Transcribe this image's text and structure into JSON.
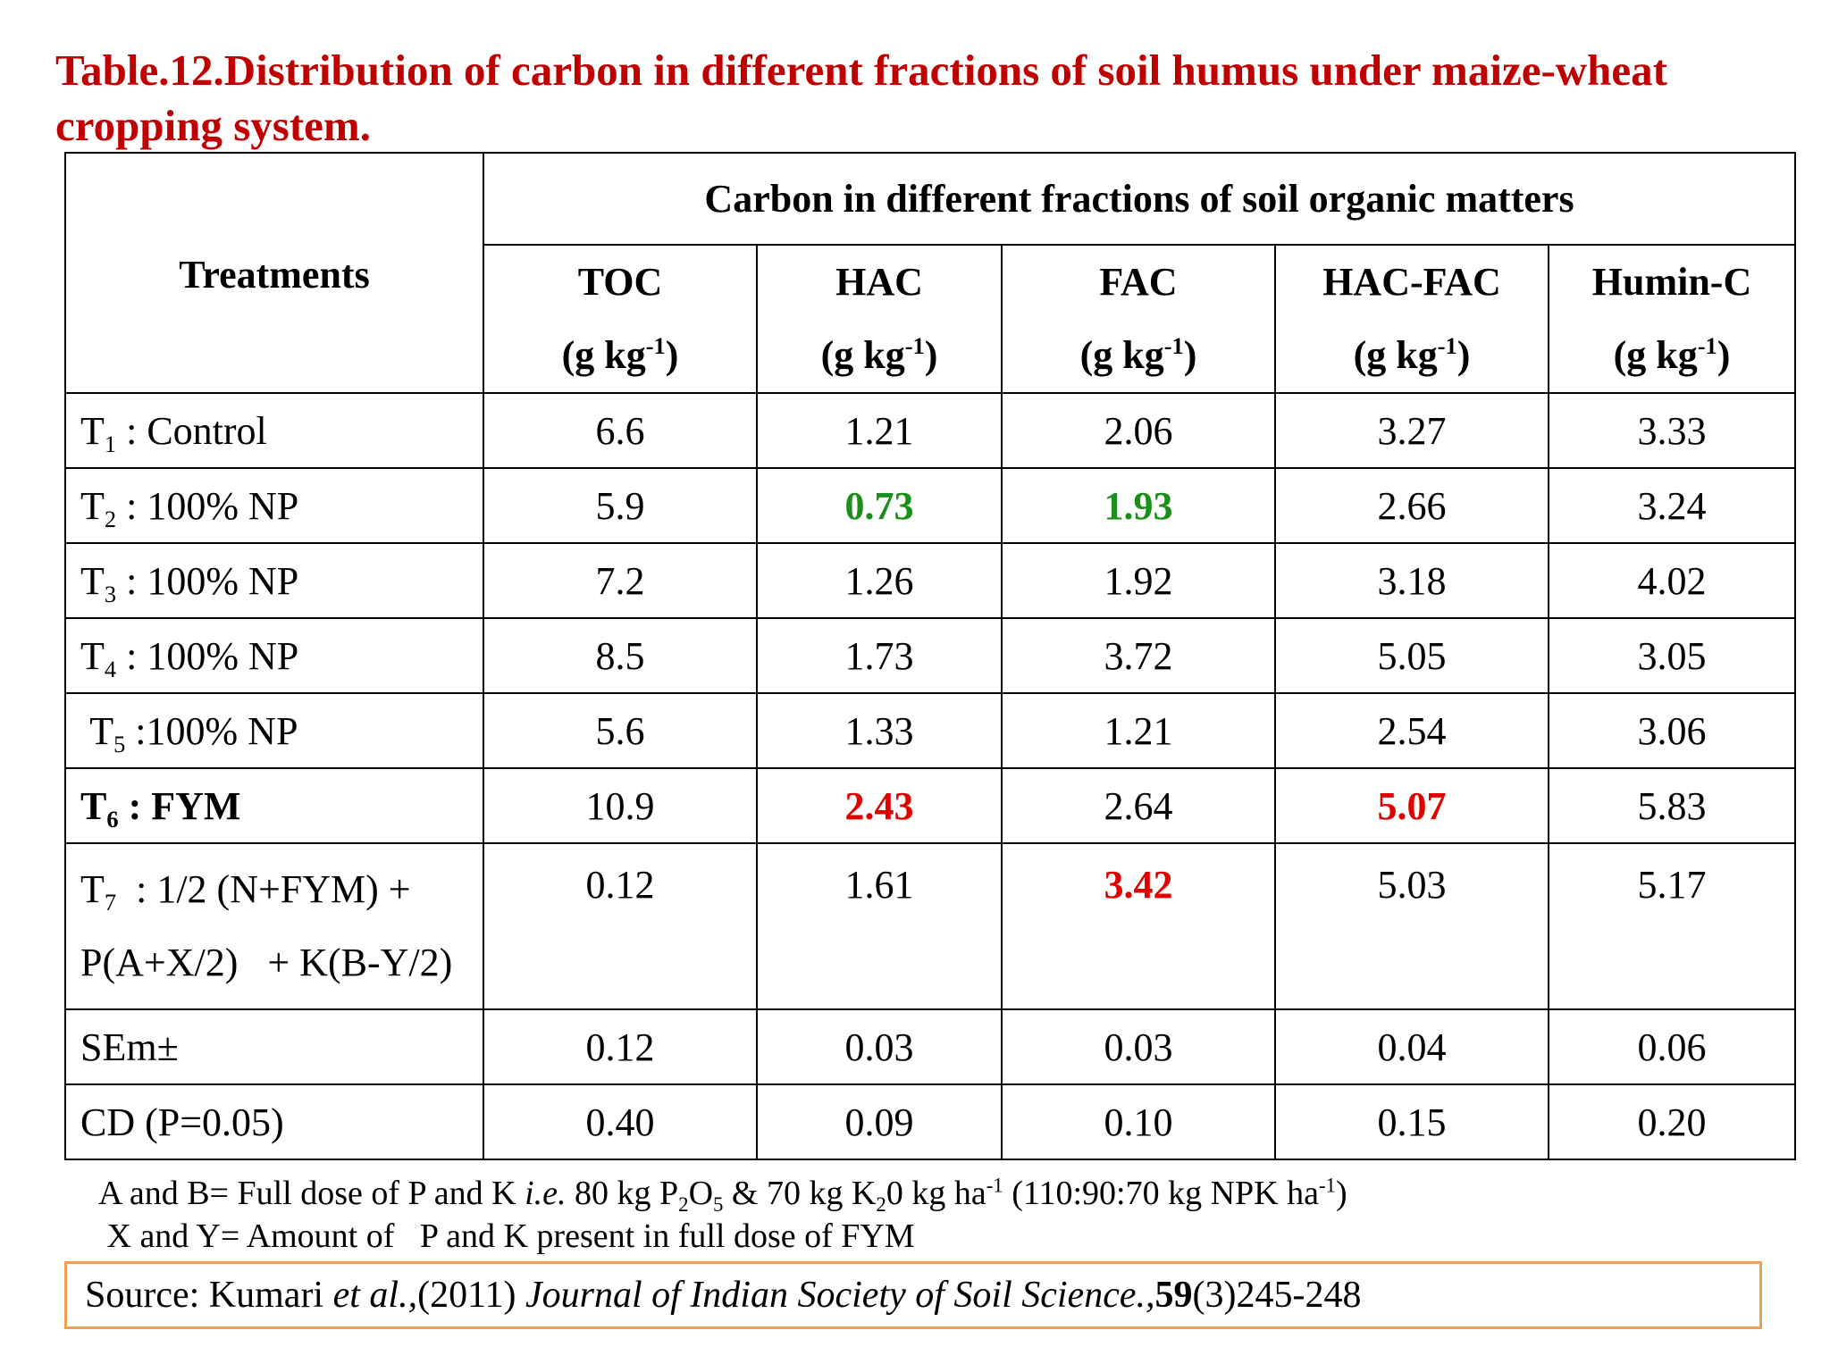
{
  "title": "Table.12.Distribution  of carbon  in different fractions of soil humus under maize-wheat cropping system.",
  "table": {
    "treatments_header": "Treatments",
    "group_header": "Carbon in different fractions of soil organic matters",
    "columns": [
      {
        "name": "TOC",
        "unit_pre": "(g kg",
        "unit_sup": "-1",
        "unit_post": ")"
      },
      {
        "name": "HAC",
        "unit_pre": "(g kg",
        "unit_sup": "-1",
        "unit_post": ")"
      },
      {
        "name": "FAC",
        "unit_pre": "(g kg",
        "unit_sup": "-1",
        "unit_post": ")"
      },
      {
        "name": "HAC-FAC",
        "unit_pre": "(g kg",
        "unit_sup": "-1",
        "unit_post": ")"
      },
      {
        "name": "Humin-C",
        "unit_pre": "(g  kg",
        "unit_sup": "-1",
        "unit_post": ")"
      }
    ],
    "rows": [
      {
        "t": "T",
        "sub": "1",
        "rest": " : Control",
        "values": [
          "6.6",
          "1.21",
          "2.06",
          "3.27",
          "3.33"
        ]
      },
      {
        "t": "T",
        "sub": "2",
        "rest": " : 100% NP",
        "values": [
          "5.9",
          "0.73",
          "1.93",
          "2.66",
          "3.24"
        ]
      },
      {
        "t": "T",
        "sub": "3",
        "rest": " : 100% NP",
        "values": [
          "7.2",
          "1.26",
          "1.92",
          "3.18",
          "4.02"
        ]
      },
      {
        "t": "T",
        "sub": "4",
        "rest": " : 100% NP",
        "values": [
          "8.5",
          "1.73",
          "3.72",
          "5.05",
          "3.05"
        ]
      },
      {
        "t": " T",
        "sub": "5",
        "rest": " :100% NP",
        "values": [
          "5.6",
          "1.33",
          "1.21",
          "2.54",
          "3.06"
        ]
      },
      {
        "t": "T",
        "sub": "6",
        "rest": " : FYM",
        "values": [
          "10.9",
          "2.43",
          "2.64",
          "5.07",
          "5.83"
        ]
      },
      {
        "t": "T",
        "sub": "7",
        "rest": "  : 1/2 (N+FYM) +",
        "line2": "P(A+X/2)   + K(B-Y/2)",
        "values": [
          "0.12",
          "1.61",
          "3.42",
          "5.03",
          "5.17"
        ]
      },
      {
        "label": "SEm±",
        "values": [
          "0.12",
          "0.03",
          "0.03",
          "0.04",
          "0.06"
        ]
      },
      {
        "label": "CD (P=0.05)",
        "values": [
          "0.40",
          "0.09",
          "0.10",
          "0.15",
          "0.20"
        ]
      }
    ]
  },
  "colors": {
    "title": "#c00000",
    "highlight_green": "#1a8f1a",
    "highlight_red": "#e00000",
    "source_border": "#f0a050"
  },
  "notes": {
    "line1": {
      "a": "A and B= Full dose of P and K ",
      "ie": "i.e.",
      "b": " 80 kg P",
      "s1": "2",
      "c": "O",
      "s2": "5",
      "d": " & 70 kg K",
      "s3": "2",
      "e": "0 kg ha",
      "s4": "-1",
      "f": " (110:90:70 kg NPK ha",
      "s5": "-1",
      "g": ")"
    },
    "line2": " X and Y= Amount of   P and K present in full dose of FYM"
  },
  "source": {
    "prefix": "Source: Kumari ",
    "etal": "et al.,",
    "year": "(2011) ",
    "journal": "Journal of Indian Society of Soil Science.,",
    "volume": "59",
    "pages": "(3)245-248"
  }
}
